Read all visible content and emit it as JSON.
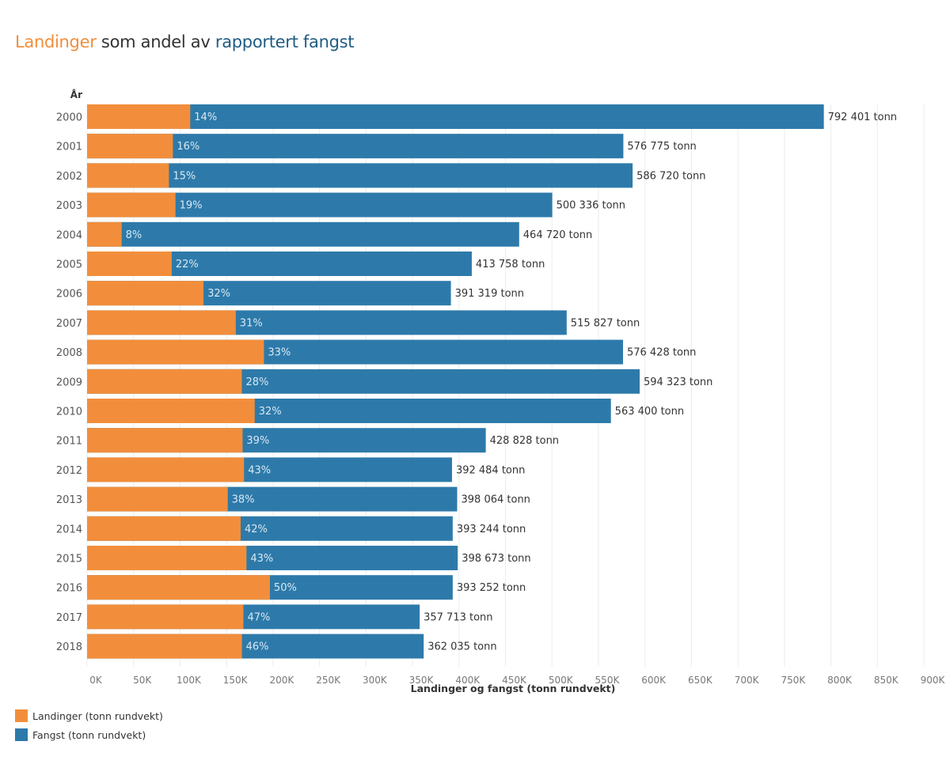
{
  "title": {
    "part1": "Landinger",
    "part2": " som andel av ",
    "part3": "rapportert fangst"
  },
  "colors": {
    "landinger": "#f28e3b",
    "fangst": "#2d7aaa",
    "title_orange": "#f28e3b",
    "title_blue": "#1f5c84",
    "pct_label": "#d9e8f2",
    "gridline": "#ececec"
  },
  "legend": [
    {
      "label": "Landinger (tonn rundvekt)",
      "color_key": "landinger"
    },
    {
      "label": "Fangst (tonn rundvekt)",
      "color_key": "fangst"
    }
  ],
  "chart_data": {
    "type": "bar",
    "orientation": "horizontal",
    "layout": "overlaid",
    "title": "Landinger som andel av rapportert fangst",
    "ylabel": "År",
    "xlabel": "Landinger og fangst (tonn rundvekt)",
    "xlim": [
      0,
      900000
    ],
    "x_ticks": [
      0,
      50000,
      100000,
      150000,
      200000,
      250000,
      300000,
      350000,
      400000,
      450000,
      500000,
      550000,
      600000,
      650000,
      700000,
      750000,
      800000,
      850000,
      900000
    ],
    "x_tick_labels": [
      "0K",
      "50K",
      "100K",
      "150K",
      "200K",
      "250K",
      "300K",
      "350K",
      "400K",
      "450K",
      "500K",
      "550K",
      "600K",
      "650K",
      "700K",
      "750K",
      "800K",
      "850K",
      "900K"
    ],
    "grid": true,
    "legend_position": "bottom-left",
    "categories": [
      "2000",
      "2001",
      "2002",
      "2003",
      "2004",
      "2005",
      "2006",
      "2007",
      "2008",
      "2009",
      "2010",
      "2011",
      "2012",
      "2013",
      "2014",
      "2015",
      "2016",
      "2017",
      "2018"
    ],
    "series": [
      {
        "name": "Fangst (tonn rundvekt)",
        "values": [
          792401,
          576775,
          586720,
          500336,
          464720,
          413758,
          391319,
          515827,
          576428,
          594323,
          563400,
          428828,
          392484,
          398064,
          393244,
          398673,
          393252,
          357713,
          362035
        ],
        "labels": [
          "792 401 tonn",
          "576 775 tonn",
          "586 720 tonn",
          "500 336 tonn",
          "464 720 tonn",
          "413 758 tonn",
          "391 319 tonn",
          "515 827 tonn",
          "576 428 tonn",
          "594 323 tonn",
          "563 400 tonn",
          "428 828 tonn",
          "392 484 tonn",
          "398 064 tonn",
          "393 244 tonn",
          "398 673 tonn",
          "393 252 tonn",
          "357 713 tonn",
          "362 035 tonn"
        ]
      },
      {
        "name": "Landinger (tonn rundvekt)",
        "share_pct": [
          14,
          16,
          15,
          19,
          8,
          22,
          32,
          31,
          33,
          28,
          32,
          39,
          43,
          38,
          42,
          43,
          50,
          47,
          46
        ],
        "share_labels": [
          "14%",
          "16%",
          "15%",
          "19%",
          "8%",
          "22%",
          "32%",
          "31%",
          "33%",
          "28%",
          "32%",
          "39%",
          "43%",
          "38%",
          "42%",
          "43%",
          "50%",
          "47%",
          "46%"
        ],
        "values": [
          110936,
          92284,
          88008,
          95064,
          37178,
          91027,
          125222,
          159906,
          190221,
          166410,
          180288,
          167243,
          168768,
          151264,
          165162,
          171429,
          196626,
          168125,
          166536
        ]
      }
    ]
  }
}
